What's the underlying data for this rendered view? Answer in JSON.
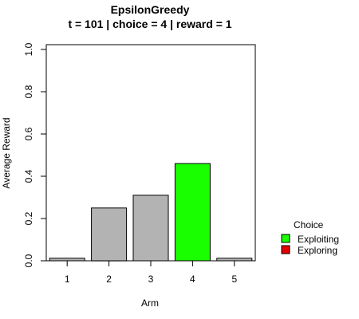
{
  "chart_data": {
    "type": "bar",
    "title": "EpsilonGreedy",
    "subtitle": "t = 101 | choice = 4 | reward = 1",
    "xlabel": "Arm",
    "ylabel": "Average Reward",
    "categories": [
      "1",
      "2",
      "3",
      "4",
      "5"
    ],
    "values": [
      0.012,
      0.25,
      0.31,
      0.46,
      0.012
    ],
    "bar_status": [
      "none",
      "none",
      "none",
      "Exploiting",
      "none"
    ],
    "ylim": [
      0,
      1
    ],
    "yticks": [
      "0.0",
      "0.2",
      "0.4",
      "0.6",
      "0.8",
      "1.0"
    ],
    "ytick_values": [
      0,
      0.2,
      0.4,
      0.6,
      0.8,
      1.0
    ],
    "grid": false,
    "legend": {
      "title": "Choice",
      "placement": "right",
      "entries": [
        {
          "label": "Exploiting",
          "color": "#1aff00"
        },
        {
          "label": "Exploring",
          "color": "#e50000"
        }
      ]
    },
    "colors": {
      "default_bar": "#b3b3b3",
      "Exploiting": "#1aff00",
      "Exploring": "#e50000"
    }
  }
}
